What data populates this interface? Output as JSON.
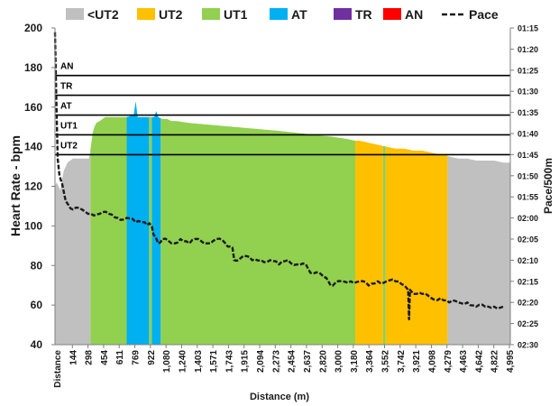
{
  "chart_data": {
    "type": "area",
    "title": "",
    "xlabel": "Distance (m)",
    "ylabel": "Heart Rate - bpm",
    "y2label": "Pace/500m",
    "xlim": [
      0,
      5080
    ],
    "ylim": [
      40,
      200
    ],
    "y_ticks": [
      40,
      60,
      80,
      100,
      120,
      140,
      160,
      180,
      200
    ],
    "y2_ticks": [
      "01:15",
      "01:20",
      "01:25",
      "01:30",
      "01:35",
      "01:40",
      "01:45",
      "01:50",
      "01:55",
      "02:00",
      "02:05",
      "02:10",
      "02:15",
      "02:20",
      "02:25",
      "02:30"
    ],
    "x_first_label": "Distance",
    "x_tick_labels": [
      "144",
      "298",
      "454",
      "611",
      "769",
      "922",
      "1,080",
      "1,240",
      "1,403",
      "1,571",
      "1,743",
      "1,915",
      "2,094",
      "2,273",
      "2,454",
      "2,637",
      "2,820",
      "3,000",
      "3,180",
      "3,364",
      "3,552",
      "3,742",
      "3,921",
      "4,098",
      "4,279",
      "4,463",
      "4,642",
      "4,822",
      "4,995"
    ],
    "legend": [
      {
        "name": "<UT2",
        "color": "#c0c0c0",
        "style": "box"
      },
      {
        "name": "UT2",
        "color": "#ffc000",
        "style": "box"
      },
      {
        "name": "UT1",
        "color": "#92d050",
        "style": "box"
      },
      {
        "name": "AT",
        "color": "#00b0f0",
        "style": "box"
      },
      {
        "name": "TR",
        "color": "#7030a0",
        "style": "box"
      },
      {
        "name": "AN",
        "color": "#ff0000",
        "style": "box"
      },
      {
        "name": "Pace",
        "color": "#1a1a1a",
        "style": "dash"
      }
    ],
    "zone_lines": [
      {
        "name": "AN",
        "value": 176
      },
      {
        "name": "TR",
        "value": 166
      },
      {
        "name": "AT",
        "value": 156
      },
      {
        "name": "UT1",
        "value": 146
      },
      {
        "name": "UT2",
        "value": 136
      }
    ],
    "heart_rate_series": {
      "x": [
        0,
        20,
        40,
        60,
        80,
        100,
        140,
        200,
        280,
        340,
        380,
        400,
        420,
        440,
        460,
        500,
        560,
        640,
        720,
        800,
        880,
        900,
        1000,
        1100,
        1150,
        1200,
        1250,
        1300,
        1350,
        1500,
        1750,
        2000,
        2250,
        2500,
        2700,
        2900,
        3100,
        3250,
        3350,
        3400,
        3500,
        3600,
        3700,
        3800,
        3900,
        4000,
        4100,
        4200,
        4300,
        4350,
        4400,
        4500,
        4600,
        4700,
        4800,
        4900,
        5000
      ],
      "y": [
        120,
        122,
        120,
        118,
        124,
        128,
        132,
        134,
        134,
        134,
        134,
        140,
        147,
        150,
        152,
        153,
        155,
        155,
        155,
        155,
        156,
        155,
        155,
        155,
        155,
        154,
        154,
        153,
        153,
        152,
        151,
        150,
        149,
        148,
        147,
        146,
        145,
        144,
        143,
        143,
        142,
        141,
        140,
        139,
        139,
        138,
        138,
        137,
        136,
        136,
        135,
        134,
        134,
        133,
        133,
        133,
        132
      ]
    },
    "zone_bands": [
      {
        "zone": "<UT2",
        "start": 0,
        "end": 395
      },
      {
        "zone": "UT1",
        "start": 395,
        "end": 800
      },
      {
        "zone": "AT",
        "start": 800,
        "end": 1050
      },
      {
        "zone": "UT1",
        "start": 1050,
        "end": 1080
      },
      {
        "zone": "AT",
        "start": 1080,
        "end": 1180
      },
      {
        "zone": "UT1",
        "start": 1180,
        "end": 3350
      },
      {
        "zone": "UT2",
        "start": 3350,
        "end": 3660
      },
      {
        "zone": "UT1",
        "start": 3660,
        "end": 3690
      },
      {
        "zone": "UT2",
        "start": 3690,
        "end": 4380
      },
      {
        "zone": "<UT2",
        "start": 4380,
        "end": 5080
      }
    ],
    "hr_spikes": [
      {
        "x": 900,
        "y": 163
      },
      {
        "x": 1130,
        "y": 158
      }
    ],
    "pace_series": {
      "unit": "seconds per 500m",
      "x": [
        0,
        15,
        30,
        50,
        80,
        120,
        200,
        300,
        400,
        500,
        600,
        700,
        800,
        900,
        1000,
        1080,
        1100,
        1150,
        1200,
        1300,
        1400,
        1500,
        1600,
        1700,
        1800,
        1900,
        1980,
        2000,
        2100,
        2200,
        2300,
        2400,
        2500,
        2600,
        2700,
        2800,
        2850,
        2950,
        3000,
        3050,
        3100,
        3200,
        3300,
        3400,
        3500,
        3600,
        3700,
        3800,
        3900,
        3940,
        3950,
        3960,
        4000,
        4100,
        4200,
        4300,
        4400,
        4500,
        4600,
        4700,
        4800,
        4900,
        5000
      ],
      "y": [
        76,
        92,
        106,
        110,
        112,
        116,
        118,
        118,
        119,
        119,
        119,
        120,
        120,
        121,
        121,
        122,
        124,
        126,
        125,
        126,
        125,
        126,
        125,
        126,
        125,
        126,
        127,
        130,
        129,
        130,
        130,
        130,
        131,
        130,
        131,
        131,
        133,
        133,
        134,
        135,
        136,
        135,
        135,
        135,
        136,
        135,
        135,
        135,
        136,
        137,
        144,
        137,
        138,
        138,
        139,
        139,
        140,
        140,
        140,
        141,
        141,
        141,
        141
      ]
    }
  }
}
